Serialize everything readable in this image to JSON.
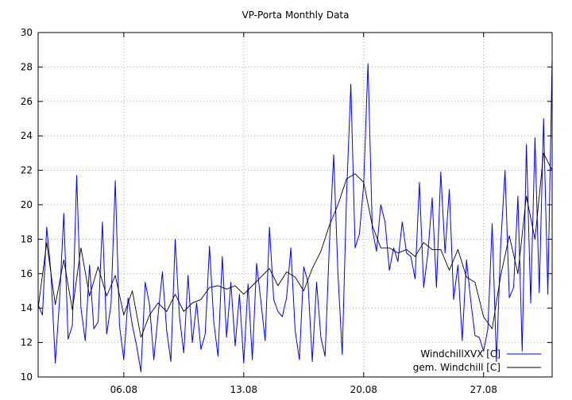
{
  "chart_data": {
    "type": "line",
    "title": "VP-Porta Monthly Data",
    "xlabel": "",
    "ylabel": "",
    "x_range_days": [
      1.0,
      31.0
    ],
    "xlim_days": [
      1.0,
      31.0
    ],
    "ylim": [
      10,
      30
    ],
    "yticks": [
      10,
      12,
      14,
      16,
      18,
      20,
      22,
      24,
      26,
      28,
      30
    ],
    "xticks": [
      {
        "day": 6,
        "label": "06.08"
      },
      {
        "day": 13,
        "label": "13.08"
      },
      {
        "day": 20,
        "label": "20.08"
      },
      {
        "day": 27,
        "label": "27.08"
      }
    ],
    "grid": true,
    "legend_position": "bottom-right",
    "series": [
      {
        "name": "WindchillXVX [C]",
        "color": "#0000ff",
        "x": [
          1.0,
          1.25,
          1.5,
          1.75,
          2.0,
          2.25,
          2.5,
          2.75,
          3.0,
          3.25,
          3.5,
          3.75,
          4.0,
          4.25,
          4.5,
          4.75,
          5.0,
          5.25,
          5.5,
          5.75,
          6.0,
          6.25,
          6.5,
          6.75,
          7.0,
          7.25,
          7.5,
          7.75,
          8.0,
          8.25,
          8.5,
          8.75,
          9.0,
          9.25,
          9.5,
          9.75,
          10.0,
          10.25,
          10.5,
          10.75,
          11.0,
          11.25,
          11.5,
          11.75,
          12.0,
          12.25,
          12.5,
          12.75,
          13.0,
          13.25,
          13.5,
          13.75,
          14.0,
          14.25,
          14.5,
          14.75,
          15.0,
          15.25,
          15.5,
          15.75,
          16.0,
          16.25,
          16.5,
          16.75,
          17.0,
          17.25,
          17.5,
          17.75,
          18.0,
          18.25,
          18.5,
          18.75,
          19.0,
          19.25,
          19.5,
          19.75,
          20.0,
          20.25,
          20.5,
          20.75,
          21.0,
          21.25,
          21.5,
          21.75,
          22.0,
          22.25,
          22.5,
          22.75,
          23.0,
          23.25,
          23.5,
          23.75,
          24.0,
          24.25,
          24.5,
          24.75,
          25.0,
          25.25,
          25.5,
          25.75,
          26.0,
          26.25,
          26.5,
          26.75,
          27.0,
          27.25,
          27.5,
          27.75,
          28.0,
          28.25,
          28.5,
          28.75,
          29.0,
          29.25,
          29.5,
          29.75,
          30.0,
          30.25,
          30.5,
          30.75,
          31.0
        ],
        "values": [
          14.2,
          13.6,
          18.7,
          16.0,
          10.8,
          14.5,
          19.5,
          12.2,
          13.0,
          21.7,
          14.0,
          12.1,
          16.5,
          12.8,
          13.2,
          19.0,
          12.5,
          14.2,
          21.4,
          13.0,
          11.0,
          14.6,
          13.0,
          11.8,
          10.3,
          15.5,
          14.2,
          11.0,
          13.6,
          16.1,
          12.7,
          10.9,
          18.0,
          13.5,
          11.4,
          15.9,
          12.0,
          14.3,
          11.6,
          12.5,
          17.6,
          13.2,
          11.2,
          17.0,
          12.3,
          15.5,
          11.8,
          14.8,
          10.8,
          15.4,
          11.0,
          16.6,
          14.4,
          12.1,
          18.7,
          14.5,
          13.8,
          13.5,
          14.6,
          17.5,
          12.7,
          11.0,
          16.4,
          15.5,
          10.9,
          15.5,
          12.3,
          11.2,
          17.7,
          22.9,
          16.0,
          11.3,
          20.5,
          27.0,
          17.5,
          18.3,
          21.2,
          28.2,
          18.6,
          17.3,
          20.0,
          19.0,
          16.2,
          17.5,
          16.7,
          19.0,
          17.2,
          17.0,
          15.7,
          21.3,
          15.2,
          17.2,
          20.4,
          15.2,
          21.9,
          17.2,
          20.9,
          14.5,
          16.5,
          12.1,
          16.8,
          14.4,
          12.4,
          12.3,
          11.5,
          12.8,
          18.9,
          10.9,
          17.7,
          22.0,
          14.6,
          15.2,
          20.5,
          11.5,
          23.5,
          14.3,
          23.9,
          14.9,
          25.0,
          14.8,
          28.5
        ]
      },
      {
        "name": "gem. Windchill [C]",
        "color": "#000000",
        "x": [
          1.0,
          1.5,
          2.0,
          2.5,
          3.0,
          3.5,
          4.0,
          4.5,
          5.0,
          5.5,
          6.0,
          6.5,
          7.0,
          7.5,
          8.0,
          8.5,
          9.0,
          9.5,
          10.0,
          10.5,
          11.0,
          11.5,
          12.0,
          12.5,
          13.0,
          13.5,
          14.0,
          14.5,
          15.0,
          15.5,
          16.0,
          16.5,
          17.0,
          17.5,
          18.0,
          18.5,
          19.0,
          19.5,
          20.0,
          20.5,
          21.0,
          21.5,
          22.0,
          22.5,
          23.0,
          23.5,
          24.0,
          24.5,
          25.0,
          25.5,
          26.0,
          26.5,
          27.0,
          27.5,
          28.0,
          28.5,
          29.0,
          29.5,
          30.0,
          30.5,
          31.0
        ],
        "values": [
          14.0,
          17.8,
          14.2,
          16.8,
          13.9,
          17.5,
          14.7,
          16.4,
          14.7,
          15.9,
          13.6,
          15.0,
          12.3,
          13.6,
          14.3,
          13.8,
          14.8,
          13.8,
          14.3,
          14.5,
          15.2,
          15.3,
          15.1,
          15.3,
          14.8,
          15.3,
          15.8,
          16.3,
          15.3,
          16.1,
          15.8,
          15.0,
          16.3,
          17.3,
          18.8,
          20.0,
          21.5,
          21.8,
          21.3,
          18.8,
          17.5,
          17.5,
          17.2,
          17.4,
          17.0,
          17.8,
          17.4,
          17.4,
          16.2,
          17.4,
          15.8,
          15.5,
          13.5,
          12.8,
          15.9,
          18.2,
          16.0,
          20.5,
          18.0,
          23.0,
          22.0
        ]
      }
    ]
  }
}
